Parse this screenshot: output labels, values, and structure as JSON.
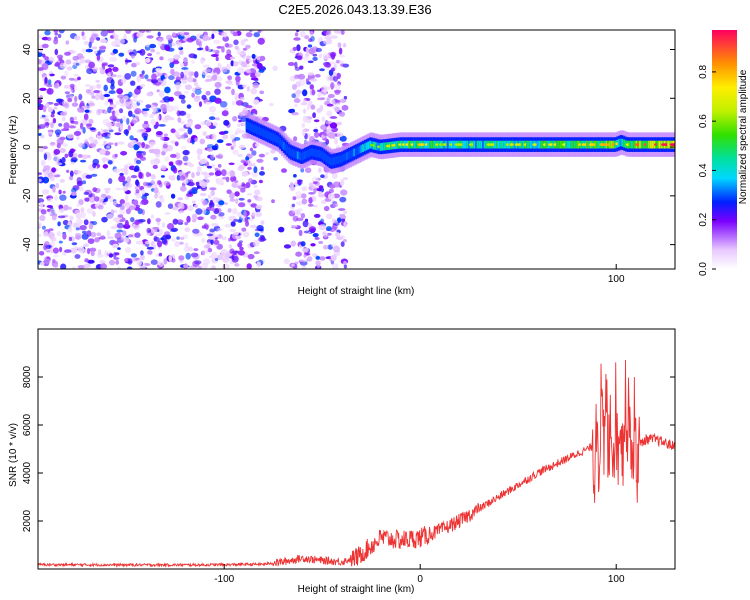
{
  "title": "C2E5.2026.043.13.39.E36",
  "chart_data": [
    {
      "type": "heatmap",
      "name": "spectrogram",
      "xlabel": "Height of straight line (km)",
      "ylabel": "Frequency (Hz)",
      "xlim": [
        -195,
        130
      ],
      "ylim": [
        -50,
        48
      ],
      "xticks": [
        -100,
        100
      ],
      "yticks": [
        -40,
        -20,
        0,
        20,
        40
      ],
      "colorbar": {
        "label": "Normalized spectral amplitude",
        "range": [
          0,
          0.97
        ],
        "ticks": [
          0.0,
          0.2,
          0.4,
          0.6,
          0.8
        ],
        "tick_labels": [
          "0.0",
          "0.2",
          "0.4",
          "0.6",
          "0.8"
        ]
      },
      "noise_region_x": [
        -195,
        -38
      ],
      "noise_gap_x": [
        -80,
        -66
      ],
      "ridge": {
        "x": [
          -88,
          -80,
          -72,
          -66,
          -60,
          -55,
          -50,
          -45,
          -40,
          -35,
          -30,
          -25,
          -20,
          -10,
          0,
          10,
          30,
          60,
          90,
          100,
          103,
          106,
          110,
          130
        ],
        "y": [
          9,
          6,
          3,
          -2,
          -4,
          -2,
          -3,
          -6,
          -5,
          -3,
          -1,
          1,
          0,
          1,
          1,
          1,
          1,
          1,
          1,
          1,
          2,
          1,
          1,
          1
        ],
        "amplitude": [
          0.15,
          0.2,
          0.3,
          0.4,
          0.35,
          0.3,
          0.35,
          0.3,
          0.3,
          0.35,
          0.45,
          0.55,
          0.6,
          0.65,
          0.75,
          0.6,
          0.6,
          0.65,
          0.75,
          0.8,
          0.55,
          0.7,
          0.85,
          0.95
        ]
      }
    },
    {
      "type": "line",
      "name": "snr",
      "xlabel": "Height of straight line (km)",
      "ylabel": "SNR (10 * v/v)",
      "xlim": [
        -195,
        130
      ],
      "ylim": [
        0,
        10000
      ],
      "xticks": [
        -100,
        0,
        100
      ],
      "yticks": [
        2000,
        4000,
        6000,
        8000
      ],
      "color": "#ee3333",
      "series": [
        {
          "name": "SNR",
          "x": [
            -195,
            -150,
            -110,
            -80,
            -70,
            -60,
            -50,
            -40,
            -32,
            -20,
            -10,
            0,
            10,
            20,
            30,
            40,
            50,
            60,
            70,
            80,
            88,
            91,
            95,
            100,
            103,
            105,
            107,
            108,
            110,
            115,
            120,
            130
          ],
          "y": [
            180,
            170,
            170,
            200,
            300,
            450,
            350,
            300,
            500,
            1300,
            1200,
            1300,
            1600,
            2000,
            2500,
            3000,
            3500,
            4000,
            4400,
            4800,
            5100,
            5800,
            5900,
            5700,
            5800,
            6600,
            6200,
            5400,
            5000,
            5400,
            5400,
            5100
          ]
        }
      ]
    }
  ]
}
